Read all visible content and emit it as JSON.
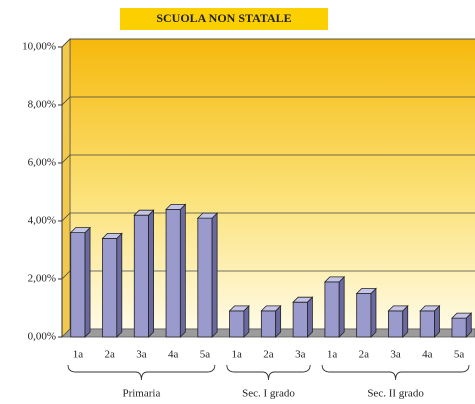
{
  "chart_data": {
    "type": "bar",
    "title": "SCUOLA NON STATALE",
    "groups": [
      {
        "name": "Primaria",
        "categories": [
          "1a",
          "2a",
          "3a",
          "4a",
          "5a"
        ],
        "values": [
          3.6,
          3.4,
          4.2,
          4.4,
          4.1
        ]
      },
      {
        "name": "Sec. I grado",
        "categories": [
          "1a",
          "2a",
          "3a"
        ],
        "values": [
          0.9,
          0.9,
          1.2
        ]
      },
      {
        "name": "Sec. II grado",
        "categories": [
          "1a",
          "2a",
          "3a",
          "4a",
          "5a"
        ],
        "values": [
          1.9,
          1.5,
          0.9,
          0.9,
          0.65
        ]
      }
    ],
    "color": "#9a9acc",
    "ylim": [
      0,
      10
    ],
    "yticks": [
      {
        "value": 0,
        "label": "0,00%"
      },
      {
        "value": 2,
        "label": "2,00%"
      },
      {
        "value": 4,
        "label": "4,00%"
      },
      {
        "value": 6,
        "label": "6,00%"
      },
      {
        "value": 8,
        "label": "8,00%"
      },
      {
        "value": 10,
        "label": "10,00%"
      }
    ],
    "grid": true
  }
}
